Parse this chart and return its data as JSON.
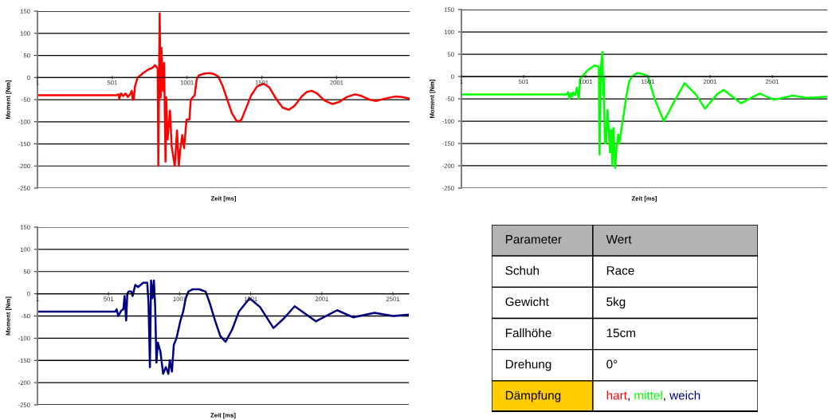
{
  "chart_data": [
    {
      "type": "line",
      "xlabel": "Zeit [ms]",
      "ylabel": "Moment [Nm]",
      "xlim": [
        1,
        2489
      ],
      "xticks": [
        1,
        501,
        1001,
        1501,
        2001
      ],
      "ylim": [
        -250,
        150
      ],
      "yticks": [
        -250,
        -200,
        -150,
        -100,
        -50,
        0,
        50,
        100,
        150
      ],
      "grid": "y",
      "legend": false,
      "series": [
        {
          "color": "#ff0000",
          "x": [
            1,
            530,
            545,
            548,
            560,
            575,
            590,
            605,
            620,
            632,
            638,
            645,
            653,
            671,
            690,
            707,
            742,
            770,
            787,
            805,
            809,
            818,
            825,
            830,
            840,
            848,
            857,
            862,
            871,
            887,
            898,
            919,
            934,
            946,
            955,
            969,
            981,
            998,
            1017,
            1026,
            1052,
            1065,
            1080,
            1120,
            1150,
            1180,
            1210,
            1240,
            1270,
            1300,
            1330,
            1345,
            1365,
            1395,
            1430,
            1470,
            1513,
            1550,
            1600,
            1640,
            1682,
            1720,
            1770,
            1800,
            1833,
            1870,
            1920,
            1974,
            2020,
            2070,
            2125,
            2170,
            2220,
            2267,
            2320,
            2391,
            2440,
            2489
          ],
          "values": [
            -40,
            -40,
            -38,
            -48,
            -36,
            -42,
            -36,
            -44,
            -38,
            -30,
            -50,
            -50,
            -20,
            0,
            5,
            10,
            18,
            22,
            28,
            20,
            -200,
            145,
            -45,
            67,
            -30,
            33,
            -190,
            -45,
            -140,
            -75,
            -155,
            -200,
            -120,
            -200,
            -165,
            -130,
            -160,
            -95,
            -95,
            -50,
            -40,
            -5,
            5,
            9,
            10,
            8,
            2,
            -20,
            -50,
            -80,
            -97,
            -100,
            -95,
            -70,
            -40,
            -20,
            -14,
            -22,
            -50,
            -68,
            -73,
            -64,
            -42,
            -33,
            -30,
            -36,
            -52,
            -60,
            -55,
            -44,
            -38,
            -42,
            -50,
            -53,
            -48,
            -43,
            -44,
            -48
          ]
        }
      ]
    },
    {
      "type": "line",
      "xlabel": "Zeit [ms]",
      "ylabel": "Moment [Nm]",
      "xlim": [
        1,
        2943
      ],
      "xticks": [
        1,
        501,
        1001,
        1501,
        2001,
        2501
      ],
      "ylim": [
        -250,
        150
      ],
      "yticks": [
        -250,
        -200,
        -150,
        -100,
        -50,
        0,
        50,
        100,
        150
      ],
      "grid": "y",
      "legend": false,
      "series": [
        {
          "color": "#00ff00",
          "x": [
            1,
            849,
            860,
            870,
            880,
            890,
            900,
            915,
            930,
            945,
            956,
            988,
            1020,
            1074,
            1106,
            1112,
            1123,
            1134,
            1142,
            1146,
            1155,
            1164,
            1176,
            1196,
            1206,
            1215,
            1223,
            1238,
            1249,
            1262,
            1270,
            1309,
            1330,
            1352,
            1373,
            1416,
            1469,
            1501,
            1555,
            1629,
            1715,
            1796,
            1886,
            1961,
            2057,
            2110,
            2249,
            2399,
            2516,
            2666,
            2783,
            2943
          ],
          "values": [
            -40,
            -40,
            -35,
            -50,
            -38,
            -45,
            -36,
            -42,
            -25,
            -50,
            -5,
            5,
            15,
            25,
            22,
            -175,
            20,
            55,
            -40,
            0,
            -150,
            -150,
            -75,
            -170,
            -120,
            -200,
            -115,
            -205,
            -160,
            -130,
            -150,
            -80,
            -40,
            -10,
            0,
            8,
            5,
            0,
            -50,
            -100,
            -55,
            -15,
            -40,
            -72,
            -40,
            -30,
            -60,
            -38,
            -52,
            -43,
            -48,
            -45
          ]
        }
      ]
    },
    {
      "type": "line",
      "xlabel": "Zeit [ms]",
      "ylabel": "Moment [Nm]",
      "xlim": [
        1,
        2613
      ],
      "xticks": [
        1,
        501,
        1001,
        1501,
        2001,
        2501
      ],
      "ylim": [
        -250,
        150
      ],
      "yticks": [
        -250,
        -200,
        -150,
        -100,
        -50,
        0,
        50,
        100,
        150
      ],
      "grid": "y",
      "legend": false,
      "series": [
        {
          "color": "#000080",
          "x": [
            1,
            549,
            558,
            570,
            590,
            605,
            614,
            625,
            633,
            642,
            661,
            670,
            689,
            708,
            745,
            773,
            782,
            792,
            800,
            810,
            820,
            829,
            838,
            848,
            866,
            885,
            904,
            922,
            932,
            947,
            960,
            979,
            1007,
            1026,
            1044,
            1063,
            1091,
            1138,
            1184,
            1212,
            1250,
            1287,
            1324,
            1371,
            1418,
            1493,
            1567,
            1661,
            1736,
            1810,
            1885,
            1960,
            2109,
            2221,
            2371,
            2502,
            2613
          ],
          "values": [
            -40,
            -40,
            -35,
            -50,
            -38,
            -35,
            -5,
            -60,
            0,
            5,
            5,
            -5,
            20,
            15,
            25,
            25,
            -20,
            -165,
            30,
            -10,
            30,
            -30,
            -155,
            -110,
            -130,
            -180,
            -165,
            -180,
            -150,
            -175,
            -115,
            -100,
            -60,
            -40,
            -10,
            5,
            10,
            10,
            5,
            -20,
            -60,
            -95,
            -108,
            -80,
            -40,
            -10,
            -30,
            -77,
            -55,
            -28,
            -45,
            -62,
            -37,
            -53,
            -43,
            -50,
            -47
          ]
        }
      ]
    },
    {
      "type": "other",
      "categories": [
        "Parameter",
        "Wert"
      ],
      "y_categories": [
        "Schuh",
        "Gewicht",
        "Fallhöhe",
        "Drehung",
        "Dämpfung"
      ],
      "cell_labels": [
        [
          "Race"
        ],
        [
          "5kg"
        ],
        [
          "15cm"
        ],
        [
          "0°"
        ],
        [
          "hart, mittel, weich"
        ]
      ]
    }
  ]
}
